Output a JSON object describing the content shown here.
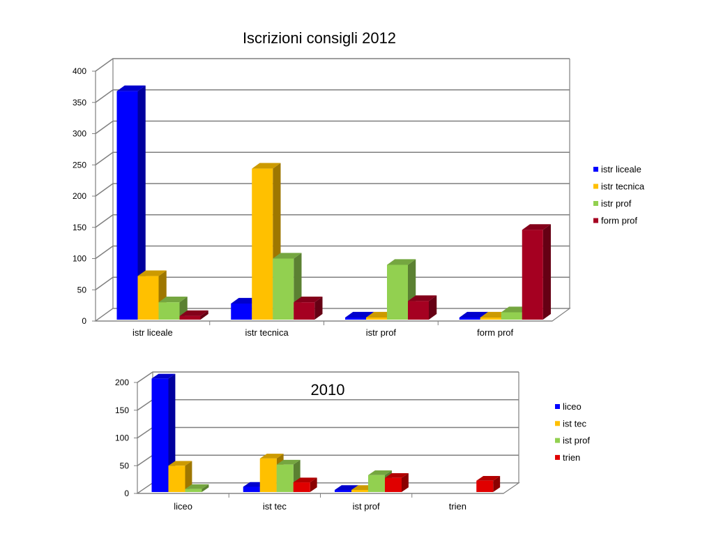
{
  "chart_data": [
    {
      "type": "bar",
      "title": "Iscrizioni consigli 2012",
      "xlabel": "",
      "ylabel": "",
      "ylim": [
        0,
        400
      ],
      "yticks": [
        0,
        50,
        100,
        150,
        200,
        250,
        300,
        350,
        400
      ],
      "grid": true,
      "legend_position": "right",
      "categories": [
        "istr liceale",
        "istr tecnica",
        "istr prof",
        "form prof"
      ],
      "series": [
        {
          "name": "istr liceale",
          "color": "#0000ff",
          "values": [
            368,
            28,
            0,
            0
          ]
        },
        {
          "name": "istr tecnica",
          "color": "#ffc000",
          "values": [
            72,
            244,
            5,
            5
          ]
        },
        {
          "name": "istr prof",
          "color": "#92d050",
          "values": [
            30,
            100,
            90,
            14
          ]
        },
        {
          "name": "form prof",
          "color": "#a50021",
          "values": [
            8,
            30,
            32,
            146
          ]
        }
      ]
    },
    {
      "type": "bar",
      "title": "2010",
      "xlabel": "",
      "ylabel": "",
      "ylim": [
        0,
        200
      ],
      "yticks": [
        0,
        50,
        100,
        150,
        200
      ],
      "grid": true,
      "legend_position": "right",
      "categories": [
        "liceo",
        "ist tec",
        "ist prof",
        "trien"
      ],
      "series": [
        {
          "name": "liceo",
          "color": "#0000ff",
          "values": [
            207,
            12,
            0,
            null
          ]
        },
        {
          "name": "ist tec",
          "color": "#ffc000",
          "values": [
            50,
            63,
            5,
            null
          ]
        },
        {
          "name": "ist prof",
          "color": "#92d050",
          "values": [
            8,
            52,
            33,
            null
          ]
        },
        {
          "name": "trien",
          "color": "#e00000",
          "values": [
            null,
            20,
            28,
            23
          ]
        }
      ]
    }
  ]
}
